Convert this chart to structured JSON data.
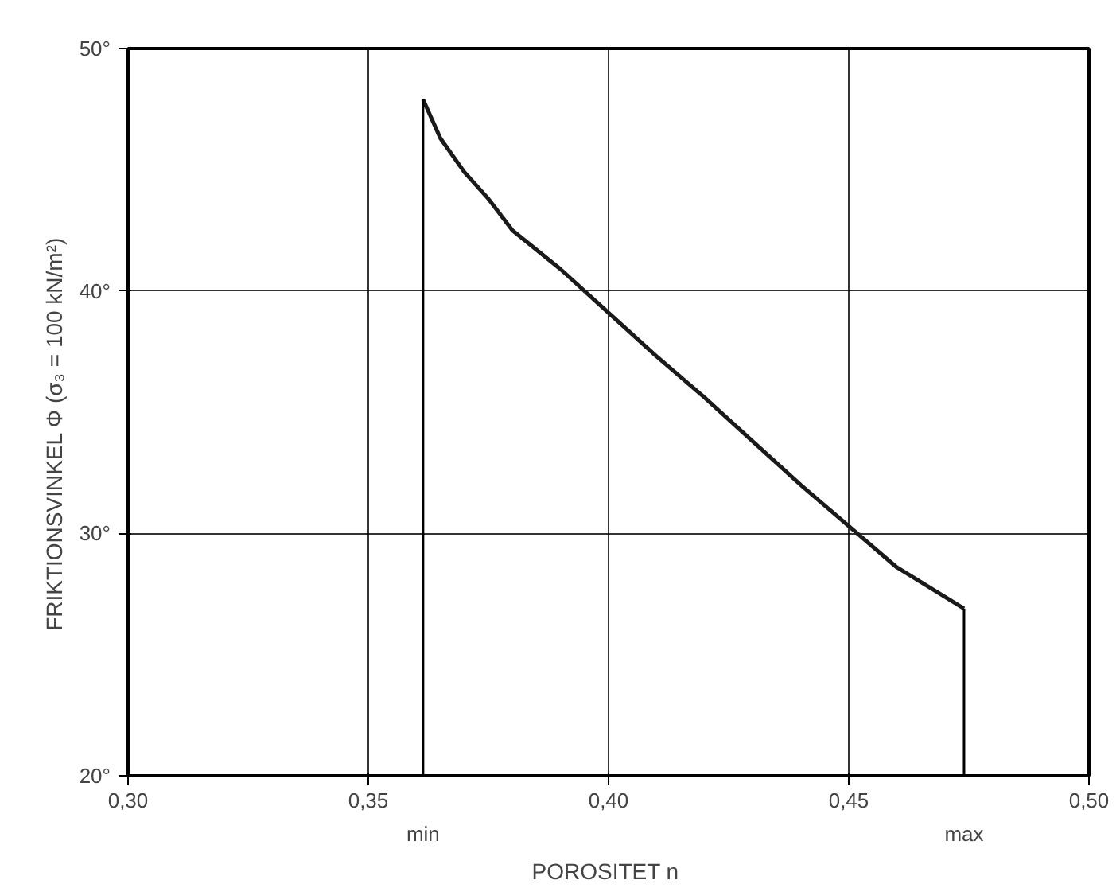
{
  "chart_data": {
    "type": "line",
    "xlabel": "POROSITET  n",
    "ylabel": "FRIKTIONSVINKEL   Φ      (σ₃ = 100 kN/m²)",
    "x": [
      0.3614,
      0.365,
      0.37,
      0.375,
      0.38,
      0.39,
      0.4,
      0.41,
      0.42,
      0.43,
      0.44,
      0.45,
      0.46,
      0.474
    ],
    "series": [
      {
        "color": "#1a1a1a",
        "values": [
          47.9,
          46.3,
          44.9,
          43.8,
          42.5,
          40.9,
          39.1,
          37.3,
          35.6,
          33.8,
          32.0,
          30.3,
          28.6,
          26.9
        ]
      }
    ],
    "xlim": [
      0.3,
      0.5
    ],
    "ylim": [
      20,
      50
    ],
    "xticks": [
      {
        "value": 0.3,
        "label": "0,30"
      },
      {
        "value": 0.35,
        "label": "0,35"
      },
      {
        "value": 0.4,
        "label": "0,40"
      },
      {
        "value": 0.45,
        "label": "0,45"
      },
      {
        "value": 0.5,
        "label": "0,50"
      }
    ],
    "yticks": [
      {
        "value": 20,
        "label": "20°"
      },
      {
        "value": 30,
        "label": "30°"
      },
      {
        "value": 40,
        "label": "40°"
      },
      {
        "value": 50,
        "label": "50°"
      }
    ],
    "ref_lines": [
      {
        "axis": "x",
        "value": 0.3614,
        "label": "min"
      },
      {
        "axis": "x",
        "value": 0.474,
        "label": "max"
      }
    ],
    "grid": true,
    "marker": "none",
    "line_style": "solid"
  }
}
